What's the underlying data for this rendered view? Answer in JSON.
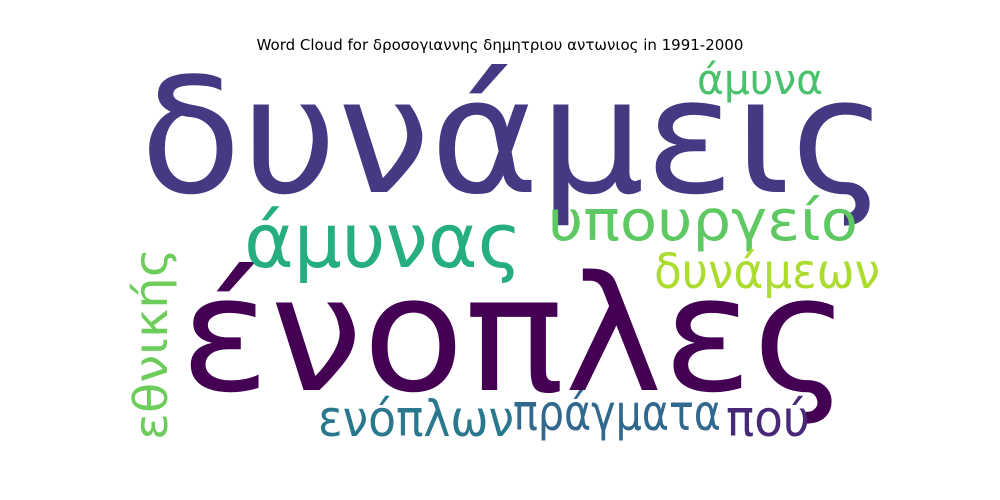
{
  "chart_data": {
    "type": "wordcloud",
    "title": "Word Cloud for δροσογιαννης δημητριου αντωνιος in 1991-2000",
    "words": [
      {
        "text": "δυνάμεις",
        "weight": 1.0,
        "color": "#443983"
      },
      {
        "text": "ένοπλες",
        "weight": 0.95,
        "color": "#440154"
      },
      {
        "text": "άμυνας",
        "weight": 0.55,
        "color": "#26ad81"
      },
      {
        "text": "υπουργείο",
        "weight": 0.45,
        "color": "#5ec962"
      },
      {
        "text": "δυνάμεων",
        "weight": 0.38,
        "color": "#addc30"
      },
      {
        "text": "άμυνα",
        "weight": 0.32,
        "color": "#4ac16d"
      },
      {
        "text": "εθνικής",
        "weight": 0.4,
        "color": "#6ccd5a"
      },
      {
        "text": "ενόπλων",
        "weight": 0.4,
        "color": "#2a788e"
      },
      {
        "text": "πράγματα",
        "weight": 0.4,
        "color": "#31688e"
      },
      {
        "text": "πού",
        "weight": 0.4,
        "color": "#482878"
      }
    ]
  }
}
